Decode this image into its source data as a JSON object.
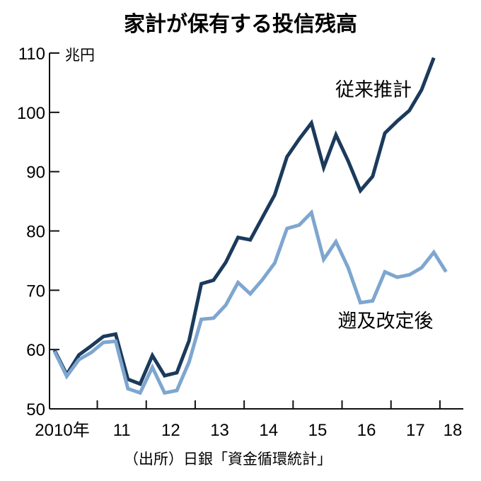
{
  "chart_data": {
    "type": "line",
    "title": "家計が保有する投信残高",
    "unit_label": "兆円",
    "source": "（出所）日銀「資金循環統計」",
    "ylim": [
      50,
      110
    ],
    "y_ticks": [
      {
        "value": 50,
        "label": "50"
      },
      {
        "value": 60,
        "label": "60"
      },
      {
        "value": 70,
        "label": "70"
      },
      {
        "value": 80,
        "label": "80"
      },
      {
        "value": 90,
        "label": "90"
      },
      {
        "value": 100,
        "label": "100"
      },
      {
        "value": 110,
        "label": "110"
      }
    ],
    "x_period_labels": [
      {
        "year": 2010,
        "label": "2010年"
      },
      {
        "year": 2011,
        "label": "11"
      },
      {
        "year": 2012,
        "label": "12"
      },
      {
        "year": 2013,
        "label": "13"
      },
      {
        "year": 2014,
        "label": "14"
      },
      {
        "year": 2015,
        "label": "15"
      },
      {
        "year": 2016,
        "label": "16"
      },
      {
        "year": 2017,
        "label": "17"
      },
      {
        "year": 2018,
        "label": "18"
      }
    ],
    "x": [
      "2010Q1",
      "2010Q2",
      "2010Q3",
      "2010Q4",
      "2011Q1",
      "2011Q2",
      "2011Q3",
      "2011Q4",
      "2012Q1",
      "2012Q2",
      "2012Q3",
      "2012Q4",
      "2013Q1",
      "2013Q2",
      "2013Q3",
      "2013Q4",
      "2014Q1",
      "2014Q2",
      "2014Q3",
      "2014Q4",
      "2015Q1",
      "2015Q2",
      "2015Q3",
      "2015Q4",
      "2016Q1",
      "2016Q2",
      "2016Q3",
      "2016Q4",
      "2017Q1",
      "2017Q2",
      "2017Q3",
      "2017Q4",
      "2018Q1"
    ],
    "series": [
      {
        "name": "従来推計",
        "color": "#1b3a5c",
        "values": [
          59.9,
          55.8,
          59.1,
          60.6,
          62.2,
          62.6,
          55.0,
          54.2,
          59.0,
          55.6,
          56.1,
          61.5,
          71.1,
          71.7,
          74.7,
          78.9,
          78.5,
          82.3,
          86.1,
          92.5,
          95.5,
          98.2,
          90.7,
          96.2,
          91.8,
          86.8,
          89.2,
          96.5,
          98.5,
          100.3,
          103.8,
          109.2,
          null
        ]
      },
      {
        "name": "遡及改定後",
        "color": "#7ea6cf",
        "values": [
          59.7,
          55.5,
          58.3,
          59.5,
          61.2,
          61.4,
          53.4,
          52.7,
          57.0,
          52.7,
          53.1,
          57.9,
          65.1,
          65.3,
          67.5,
          71.3,
          69.4,
          71.8,
          74.6,
          80.4,
          81.0,
          83.1,
          75.2,
          78.2,
          73.8,
          67.9,
          68.2,
          73.1,
          72.2,
          72.6,
          73.8,
          76.4,
          73.1
        ]
      }
    ]
  }
}
